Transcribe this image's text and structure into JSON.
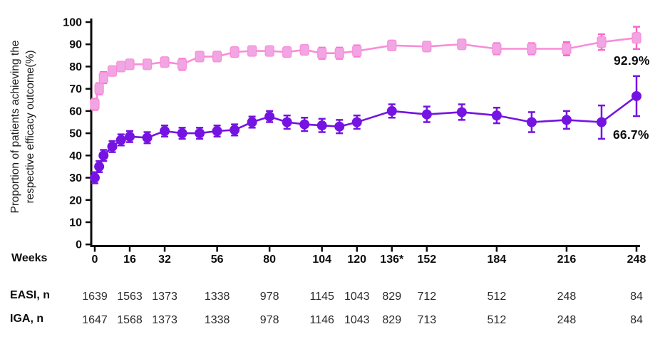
{
  "chart_data": {
    "type": "line",
    "title": "",
    "xlabel": "Weeks",
    "ylabel_line1": "Proportion of patients achieving the",
    "ylabel_line2": "respective efficacy outcome(%)",
    "ylim": [
      0,
      100
    ],
    "yticks": [
      0,
      10,
      20,
      30,
      40,
      50,
      60,
      70,
      80,
      90,
      100
    ],
    "grid": false,
    "legend_position": "none",
    "x_weeks": [
      0,
      2,
      4,
      8,
      12,
      16,
      24,
      32,
      40,
      48,
      56,
      64,
      72,
      80,
      88,
      96,
      104,
      112,
      120,
      136,
      152,
      168,
      184,
      200,
      216,
      232,
      248
    ],
    "xticks": [
      0,
      16,
      32,
      56,
      80,
      104,
      120,
      136,
      152,
      184,
      216,
      248
    ],
    "xtick_labels": [
      "0",
      "16",
      "32",
      "56",
      "80",
      "104",
      "120",
      "136*",
      "152",
      "184",
      "216",
      "248"
    ],
    "series": [
      {
        "name": "EASI",
        "marker": "square",
        "line_color": "#f98cd9",
        "fill_color": "#f1a5e3",
        "error_color": "#fa64cd",
        "end_label": "92.9%",
        "values": [
          63,
          70,
          75,
          78,
          80,
          81,
          81,
          82,
          81,
          84.5,
          84.5,
          86.5,
          87,
          87,
          86.5,
          87.5,
          86,
          86,
          87,
          89.5,
          89,
          90,
          88,
          88,
          88,
          91,
          92.9
        ],
        "errors": [
          2.5,
          2.5,
          2.5,
          2,
          2,
          2,
          2,
          2,
          2.5,
          2,
          2,
          2,
          2,
          2,
          2,
          2,
          2.5,
          2.5,
          2.5,
          2,
          2,
          2,
          2.5,
          2.5,
          3,
          3.5,
          5
        ]
      },
      {
        "name": "IGA",
        "marker": "circle",
        "line_color": "#7513e2",
        "fill_color": "#7513e2",
        "error_color": "#7513e2",
        "end_label": "66.7%",
        "values": [
          30,
          35,
          40,
          44,
          47,
          48.5,
          48,
          51,
          50,
          50,
          51,
          51.5,
          55,
          57.5,
          55,
          54,
          53.5,
          53,
          55,
          60,
          58.5,
          59.5,
          58,
          55,
          56,
          55,
          66.7
        ],
        "errors": [
          2.5,
          2.5,
          2.5,
          2.5,
          2.5,
          2.5,
          2.5,
          2.5,
          2.5,
          2.5,
          2.5,
          2.5,
          2.5,
          2.5,
          3,
          3,
          3,
          3,
          3,
          3,
          3.5,
          3.5,
          3.5,
          4.5,
          4,
          7.5,
          9
        ]
      }
    ],
    "n_table": {
      "row_labels": [
        "EASI, n",
        "IGA, n"
      ],
      "easi_n": [
        1639,
        1563,
        1373,
        1338,
        978,
        1145,
        1043,
        829,
        712,
        512,
        248,
        84
      ],
      "iga_n": [
        1647,
        1568,
        1373,
        1338,
        978,
        1146,
        1043,
        829,
        713,
        512,
        248,
        84
      ]
    },
    "axis_color": "#0d0d0d",
    "n_value_color": "#2b2b2b"
  }
}
